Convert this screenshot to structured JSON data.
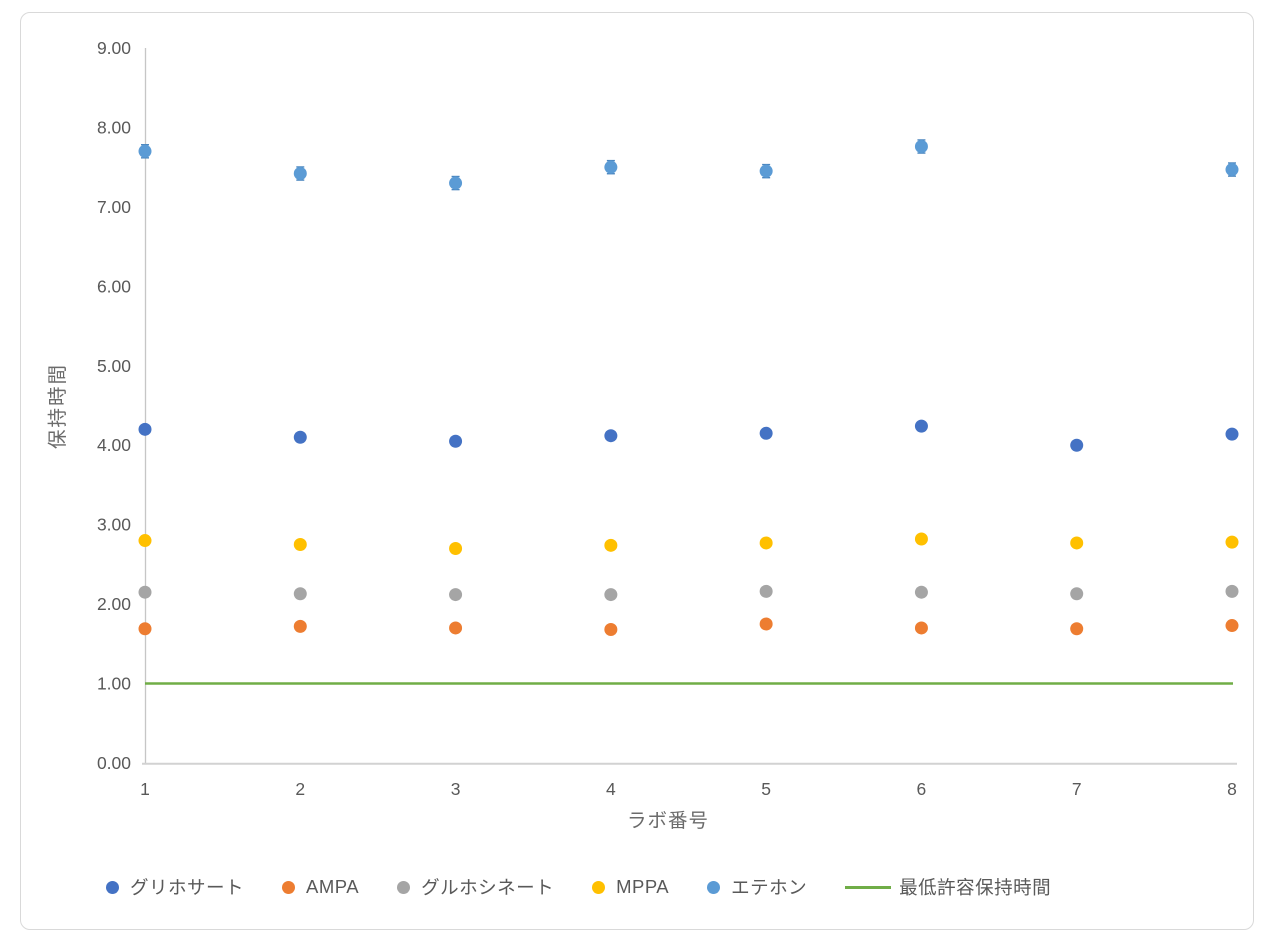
{
  "chart_data": {
    "type": "scatter",
    "title": "",
    "xlabel": "ラボ番号",
    "ylabel": "保持時間",
    "x": [
      1,
      2,
      3,
      4,
      5,
      6,
      7,
      8
    ],
    "x_tick_labels": [
      "1",
      "2",
      "3",
      "4",
      "5",
      "6",
      "7",
      "8"
    ],
    "xlim": [
      1,
      8
    ],
    "ylim": [
      0,
      9
    ],
    "ytick_step": 1,
    "y_tick_labels": [
      "0.00",
      "1.00",
      "2.00",
      "3.00",
      "4.00",
      "5.00",
      "6.00",
      "7.00",
      "8.00",
      "9.00"
    ],
    "grid": false,
    "legend_position": "bottom",
    "series": [
      {
        "name": "グリホサート",
        "color": "#4472C4",
        "values": [
          4.2,
          4.1,
          4.05,
          4.12,
          4.15,
          4.24,
          4.0,
          4.14
        ]
      },
      {
        "name": "AMPA",
        "color": "#ED7D31",
        "values": [
          1.69,
          1.72,
          1.7,
          1.68,
          1.75,
          1.7,
          1.69,
          1.73
        ]
      },
      {
        "name": "グルホシネート",
        "color": "#A5A5A5",
        "values": [
          2.15,
          2.13,
          2.12,
          2.12,
          2.16,
          2.15,
          2.13,
          2.16
        ]
      },
      {
        "name": "MPPA",
        "color": "#FFC000",
        "values": [
          2.8,
          2.75,
          2.7,
          2.74,
          2.77,
          2.82,
          2.77,
          2.78
        ]
      },
      {
        "name": "エテホン",
        "color": "#5B9BD5",
        "error_color": "#4a86bf",
        "error": 0.07,
        "values": [
          7.7,
          7.42,
          7.3,
          7.5,
          7.45,
          7.76,
          null,
          7.47
        ]
      }
    ],
    "reference_line": {
      "name": "最低許容保持時間",
      "color": "#70AD47",
      "value": 1.0
    },
    "colors": {
      "tick_text": "#595959",
      "axis_title_text": "#6b6b6b",
      "y_axis_line": "#c6c6c6",
      "x_axis_line": "#d2d2d2",
      "card_border": "#d9d9d9"
    }
  }
}
